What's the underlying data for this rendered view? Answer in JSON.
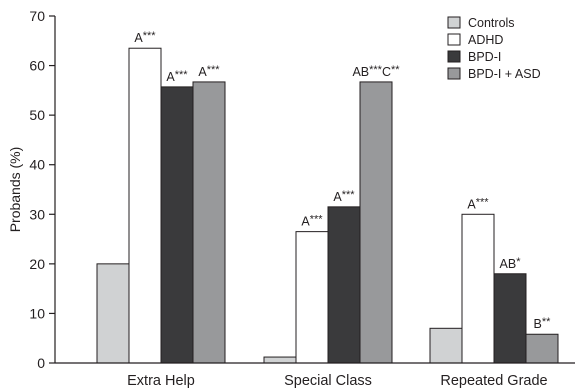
{
  "chart_data": {
    "type": "bar",
    "ylabel": "Probands (%)",
    "xlabel": "",
    "ylim": [
      0,
      70
    ],
    "yticks": [
      0,
      10,
      20,
      30,
      40,
      50,
      60,
      70
    ],
    "grid": false,
    "legend_position": "top-right",
    "categories": [
      "Extra Help",
      "Special Class",
      "Repeated Grade"
    ],
    "series": [
      {
        "name": "Controls",
        "color": "#d0d2d3",
        "values": [
          20,
          1.2,
          7
        ],
        "annotations": [
          null,
          null,
          null
        ]
      },
      {
        "name": "ADHD",
        "color": "#ffffff",
        "values": [
          63.5,
          26.5,
          30
        ],
        "annotations": [
          {
            "main": "A",
            "stars": "***"
          },
          {
            "main": "A",
            "stars": "***"
          },
          {
            "main": "A",
            "stars": "***"
          }
        ]
      },
      {
        "name": "BPD-I",
        "color": "#3a3a3c",
        "values": [
          55.7,
          31.5,
          18
        ],
        "annotations": [
          {
            "main": "A",
            "stars": "***"
          },
          {
            "main": "A",
            "stars": "***"
          },
          {
            "main": "AB",
            "stars": "*"
          }
        ]
      },
      {
        "name": "BPD-I + ASD",
        "color": "#98999b",
        "values": [
          56.7,
          56.7,
          5.8
        ],
        "annotations": [
          {
            "main": "A",
            "stars": "***"
          },
          {
            "main": "AB",
            "stars": "***",
            "main2": "C",
            "stars2": "**"
          },
          {
            "main": "B",
            "stars": "**"
          }
        ]
      }
    ]
  }
}
